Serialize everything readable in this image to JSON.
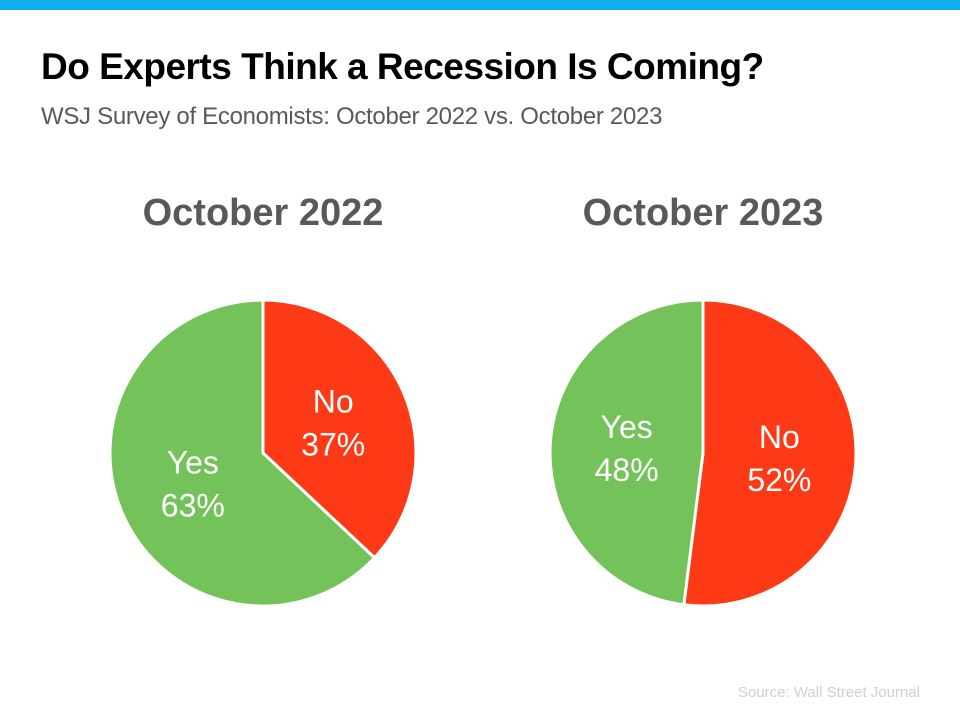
{
  "header": {
    "title": "Do Experts Think a Recession Is Coming?",
    "subtitle": "WSJ Survey of Economists: October 2022 vs. October 2023"
  },
  "colors": {
    "accent_bar": "#14aeef",
    "no": "#fe3a16",
    "yes": "#74c35a"
  },
  "chart_data": [
    {
      "type": "pie",
      "title": "October 2022",
      "slices": [
        {
          "label": "No",
          "value": 37,
          "display": "37%",
          "color": "#fe3a16"
        },
        {
          "label": "Yes",
          "value": 63,
          "display": "63%",
          "color": "#74c35a"
        }
      ]
    },
    {
      "type": "pie",
      "title": "October 2023",
      "slices": [
        {
          "label": "No",
          "value": 52,
          "display": "52%",
          "color": "#fe3a16"
        },
        {
          "label": "Yes",
          "value": 48,
          "display": "48%",
          "color": "#74c35a"
        }
      ]
    }
  ],
  "footer": {
    "source": "Source: Wall Street Journal"
  }
}
